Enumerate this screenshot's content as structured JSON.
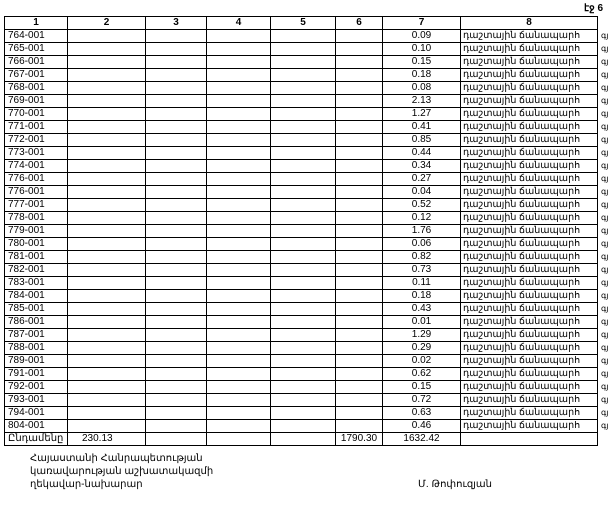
{
  "page_label": "էջ 6",
  "headers": [
    "1",
    "2",
    "3",
    "4",
    "5",
    "6",
    "7",
    "8"
  ],
  "road_type": "դաշտային ճանապարհ",
  "margin_mark": "գյ",
  "rows": [
    {
      "id": "764-001",
      "area": "0.09"
    },
    {
      "id": "765-001",
      "area": "0.10"
    },
    {
      "id": "766-001",
      "area": "0.15"
    },
    {
      "id": "767-001",
      "area": "0.18"
    },
    {
      "id": "768-001",
      "area": "0.08"
    },
    {
      "id": "769-001",
      "area": "2.13"
    },
    {
      "id": "770-001",
      "area": "1.27"
    },
    {
      "id": "771-001",
      "area": "0.41"
    },
    {
      "id": "772-001",
      "area": "0.85"
    },
    {
      "id": "773-001",
      "area": "0.44"
    },
    {
      "id": "774-001",
      "area": "0.34"
    },
    {
      "id": "776-001",
      "area": "0.27"
    },
    {
      "id": "776-001",
      "area": "0.04"
    },
    {
      "id": "777-001",
      "area": "0.52"
    },
    {
      "id": "778-001",
      "area": "0.12"
    },
    {
      "id": "779-001",
      "area": "1.76"
    },
    {
      "id": "780-001",
      "area": "0.06"
    },
    {
      "id": "781-001",
      "area": "0.82"
    },
    {
      "id": "782-001",
      "area": "0.73"
    },
    {
      "id": "783-001",
      "area": "0.11"
    },
    {
      "id": "784-001",
      "area": "0.18"
    },
    {
      "id": "785-001",
      "area": "0.43"
    },
    {
      "id": "786-001",
      "area": "0.01"
    },
    {
      "id": "787-001",
      "area": "1.29"
    },
    {
      "id": "788-001",
      "area": "0.29"
    },
    {
      "id": "789-001",
      "area": "0.02"
    },
    {
      "id": "791-001",
      "area": "0.62"
    },
    {
      "id": "792-001",
      "area": "0.15"
    },
    {
      "id": "793-001",
      "area": "0.72"
    },
    {
      "id": "794-001",
      "area": "0.63"
    },
    {
      "id": "804-001",
      "area": "0.46"
    }
  ],
  "total": {
    "label": "Ընդամենը",
    "col2": "230.13",
    "col6": "1790.30",
    "col7": "1632.42"
  },
  "footer": {
    "line1": "Հայաստանի Հանրապետության",
    "line2": "կառավարության աշխատակազմի",
    "line3": "ղեկավար-նախարար",
    "signatory": "Մ. Թոփուզյան"
  }
}
